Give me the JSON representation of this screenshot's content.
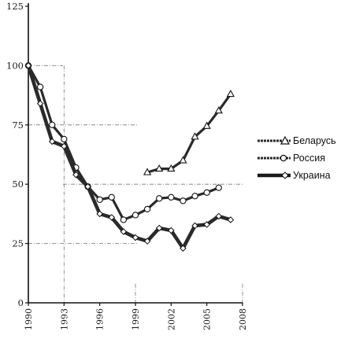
{
  "chart_data": {
    "type": "line",
    "title": "",
    "xlabel": "",
    "ylabel": "",
    "ylim": [
      0,
      125
    ],
    "xlim": [
      1990,
      2008
    ],
    "y_ticks": [
      "0",
      "25",
      "50",
      "75",
      "100",
      "125"
    ],
    "x_ticks": [
      "1990",
      "1993",
      "1996",
      "1999",
      "2002",
      "2005",
      "2008"
    ],
    "grid": "dotted/dash-dot partial",
    "legend_position": "right",
    "series": [
      {
        "name": "Беларусь",
        "marker": "triangle",
        "color": "#2a2a2a",
        "x": [
          2000,
          2001,
          2002,
          2003,
          2004,
          2005,
          2006,
          2007
        ],
        "y": [
          55,
          56.5,
          56.5,
          60,
          70,
          74.5,
          81,
          88
        ]
      },
      {
        "name": "Россия",
        "marker": "circle",
        "color": "#2a2a2a",
        "x": [
          1990,
          1991,
          1992,
          1993,
          1994,
          1995,
          1996,
          1997,
          1998,
          1999,
          2000,
          2001,
          2002,
          2003,
          2004,
          2005,
          2006
        ],
        "y": [
          100,
          91,
          75,
          69,
          57,
          49,
          43.5,
          44.5,
          35,
          37,
          39.5,
          44,
          44.5,
          43,
          45,
          46.5,
          48.5
        ]
      },
      {
        "name": "Украина",
        "marker": "diamond",
        "color": "#2a2a2a",
        "x": [
          1990,
          1991,
          1992,
          1993,
          1994,
          1995,
          1996,
          1997,
          1998,
          1999,
          2000,
          2001,
          2002,
          2003,
          2004,
          2005,
          2006,
          2007
        ],
        "y": [
          100,
          84,
          68,
          66,
          54,
          49,
          37.5,
          36,
          30,
          27.5,
          26,
          31.5,
          30.5,
          23,
          32.5,
          33,
          36.5,
          35
        ]
      }
    ]
  }
}
